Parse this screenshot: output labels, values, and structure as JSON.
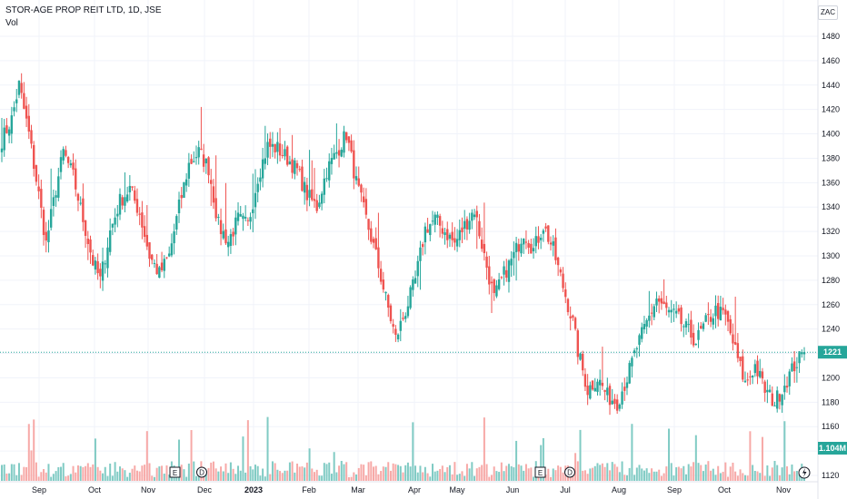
{
  "header": {
    "title": "STOR-AGE PROP REIT LTD, 1D, JSE",
    "vol_label": "Vol",
    "currency": "ZAC"
  },
  "badges": {
    "last_price": "1221",
    "last_volume": "1.104M"
  },
  "markers": {
    "earnings_letter": "E",
    "dividend_letter": "D",
    "flash_icon": "lightning-icon"
  },
  "colors": {
    "up": "#26a69a",
    "down": "#ef5350",
    "up_vol": "#80cbc4",
    "down_vol": "#f7a9a7",
    "grid": "#f0f3fa",
    "last_line": "#26a69a"
  },
  "chart_data": {
    "type": "candlestick",
    "title": "STOR-AGE PROP REIT LTD, 1D, JSE",
    "currency": "ZAC",
    "ylim": [
      1110,
      1500
    ],
    "yticks": [
      1120,
      1140,
      1160,
      1180,
      1200,
      1220,
      1240,
      1260,
      1280,
      1300,
      1320,
      1340,
      1360,
      1380,
      1400,
      1420,
      1440,
      1460,
      1480
    ],
    "xticks": [
      {
        "label": "Sep",
        "bold": false
      },
      {
        "label": "Oct",
        "bold": false
      },
      {
        "label": "Nov",
        "bold": false
      },
      {
        "label": "Dec",
        "bold": false
      },
      {
        "label": "2023",
        "bold": true
      },
      {
        "label": "Feb",
        "bold": false
      },
      {
        "label": "Mar",
        "bold": false
      },
      {
        "label": "Apr",
        "bold": false
      },
      {
        "label": "May",
        "bold": false
      },
      {
        "label": "Jun",
        "bold": false
      },
      {
        "label": "Jul",
        "bold": false
      },
      {
        "label": "Aug",
        "bold": false
      },
      {
        "label": "Sep",
        "bold": false
      },
      {
        "label": "Oct",
        "bold": false
      },
      {
        "label": "Nov",
        "bold": false
      }
    ],
    "last_price": 1221,
    "last_volume": "1.104M",
    "price_path": [
      [
        0,
        1395
      ],
      [
        4,
        1412
      ],
      [
        7,
        1440
      ],
      [
        11,
        1400
      ],
      [
        15,
        1350
      ],
      [
        18,
        1310
      ],
      [
        22,
        1355
      ],
      [
        25,
        1385
      ],
      [
        29,
        1365
      ],
      [
        33,
        1330
      ],
      [
        37,
        1295
      ],
      [
        40,
        1280
      ],
      [
        44,
        1320
      ],
      [
        48,
        1345
      ],
      [
        52,
        1355
      ],
      [
        56,
        1335
      ],
      [
        60,
        1300
      ],
      [
        64,
        1285
      ],
      [
        68,
        1300
      ],
      [
        72,
        1340
      ],
      [
        76,
        1375
      ],
      [
        80,
        1385
      ],
      [
        84,
        1372
      ],
      [
        88,
        1325
      ],
      [
        92,
        1312
      ],
      [
        96,
        1330
      ],
      [
        100,
        1325
      ],
      [
        104,
        1365
      ],
      [
        108,
        1390
      ],
      [
        112,
        1388
      ],
      [
        116,
        1380
      ],
      [
        120,
        1370
      ],
      [
        124,
        1350
      ],
      [
        128,
        1340
      ],
      [
        132,
        1370
      ],
      [
        136,
        1385
      ],
      [
        140,
        1400
      ],
      [
        144,
        1360
      ],
      [
        148,
        1330
      ],
      [
        152,
        1300
      ],
      [
        156,
        1265
      ],
      [
        160,
        1232
      ],
      [
        164,
        1255
      ],
      [
        168,
        1280
      ],
      [
        172,
        1322
      ],
      [
        176,
        1330
      ],
      [
        180,
        1320
      ],
      [
        184,
        1310
      ],
      [
        188,
        1325
      ],
      [
        192,
        1338
      ],
      [
        196,
        1300
      ],
      [
        200,
        1265
      ],
      [
        204,
        1285
      ],
      [
        208,
        1300
      ],
      [
        212,
        1320
      ],
      [
        216,
        1305
      ],
      [
        220,
        1325
      ],
      [
        224,
        1305
      ],
      [
        228,
        1275
      ],
      [
        232,
        1245
      ],
      [
        234,
        1222
      ],
      [
        238,
        1190
      ],
      [
        242,
        1200
      ],
      [
        246,
        1185
      ],
      [
        250,
        1180
      ],
      [
        254,
        1200
      ],
      [
        258,
        1225
      ],
      [
        262,
        1245
      ],
      [
        266,
        1265
      ],
      [
        270,
        1255
      ],
      [
        274,
        1250
      ],
      [
        278,
        1240
      ],
      [
        282,
        1230
      ],
      [
        286,
        1245
      ],
      [
        290,
        1255
      ],
      [
        294,
        1250
      ],
      [
        298,
        1222
      ],
      [
        302,
        1195
      ],
      [
        306,
        1210
      ],
      [
        310,
        1190
      ],
      [
        314,
        1180
      ],
      [
        318,
        1195
      ],
      [
        322,
        1210
      ],
      [
        326,
        1221
      ]
    ],
    "volume_scale_max": 1.0
  }
}
